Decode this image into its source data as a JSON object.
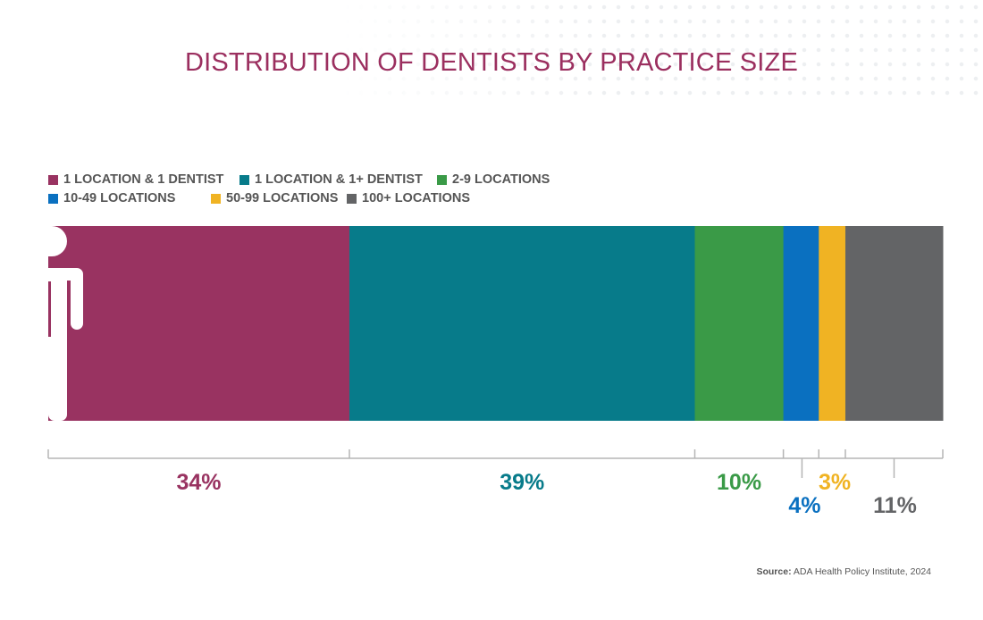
{
  "chart_data": {
    "type": "bar",
    "orientation": "horizontal-stacked-100",
    "title": "DISTRIBUTION OF DENTISTS BY PRACTICE SIZE",
    "legend_position": "top-left",
    "series": [
      {
        "name": "1 LOCATION & 1 DENTIST",
        "value": 34,
        "label": "34%",
        "color": "#993361"
      },
      {
        "name": "1 LOCATION & 1+ DENTIST",
        "value": 39,
        "label": "39%",
        "color": "#077b8a"
      },
      {
        "name": "2-9 LOCATIONS",
        "value": 10,
        "label": "10%",
        "color": "#3a9a47"
      },
      {
        "name": "10-49 LOCATIONS",
        "value": 4,
        "label": "4%",
        "color": "#0a70c0"
      },
      {
        "name": "50-99 LOCATIONS",
        "value": 3,
        "label": "3%",
        "color": "#f0b323"
      },
      {
        "name": "100+ LOCATIONS",
        "value": 11,
        "label": "11%",
        "color": "#636466"
      }
    ],
    "icon": "person-icon"
  },
  "source": {
    "label": "Source:",
    "text": "ADA Health Policy Institute, 2024"
  }
}
